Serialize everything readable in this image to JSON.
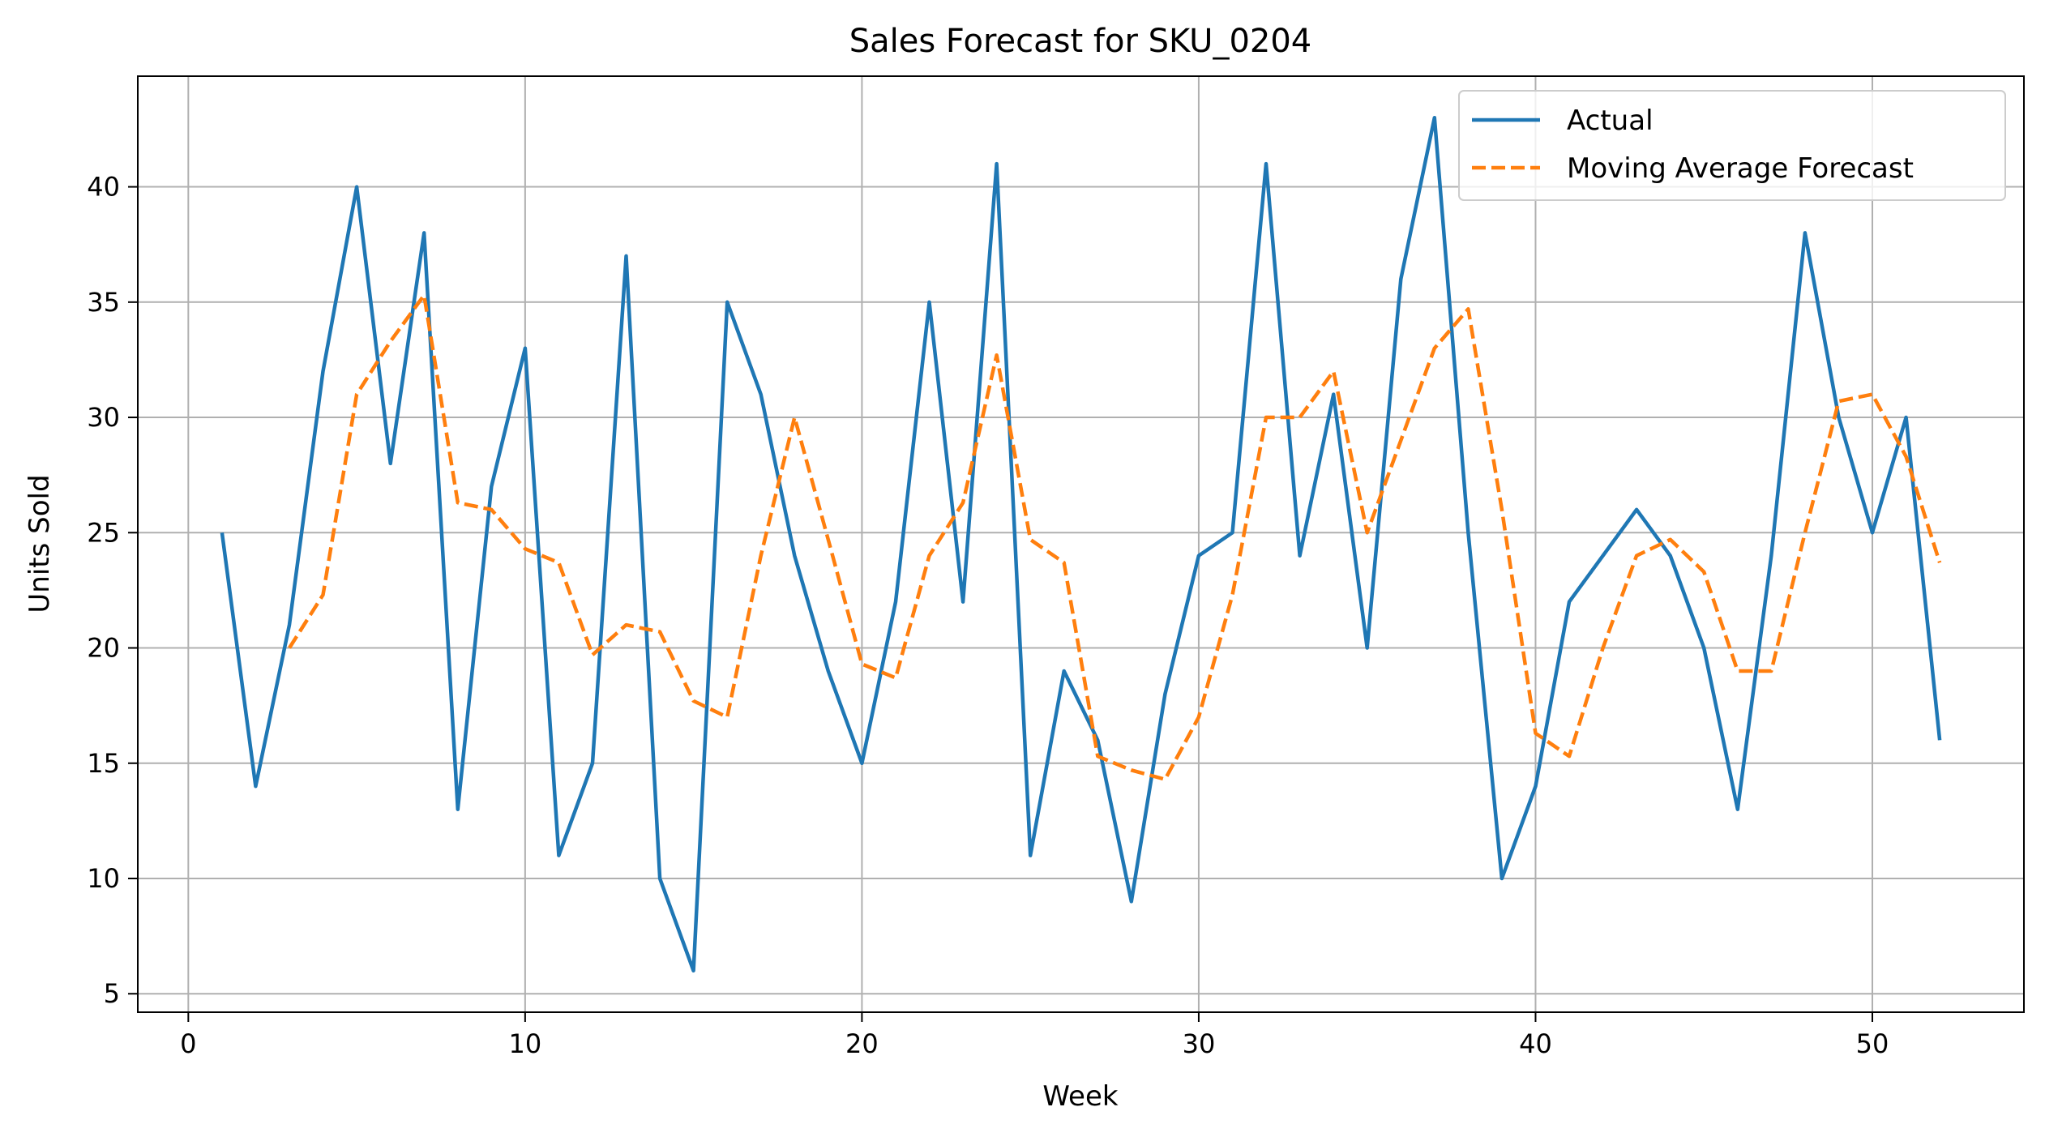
{
  "chart_data": {
    "type": "line",
    "title": "Sales Forecast for SKU_0204",
    "xlabel": "Week",
    "ylabel": "Units Sold",
    "xlim": [
      -1.5,
      54.5
    ],
    "ylim": [
      4.2,
      44.8
    ],
    "xticks": [
      0,
      10,
      20,
      30,
      40,
      50
    ],
    "yticks": [
      5,
      10,
      15,
      20,
      25,
      30,
      35,
      40
    ],
    "grid": true,
    "legend_position": "top-right",
    "series": [
      {
        "name": "Actual",
        "color": "#1f77b4",
        "style": "solid",
        "x": [
          1,
          2,
          3,
          4,
          5,
          6,
          7,
          8,
          9,
          10,
          11,
          12,
          13,
          14,
          15,
          16,
          17,
          18,
          19,
          20,
          21,
          22,
          23,
          24,
          25,
          26,
          27,
          28,
          29,
          30,
          31,
          32,
          33,
          34,
          35,
          36,
          37,
          38,
          39,
          40,
          41,
          42,
          43,
          44,
          45,
          46,
          47,
          48,
          49,
          50,
          51,
          52
        ],
        "values": [
          25,
          14,
          21,
          32,
          40,
          28,
          38,
          13,
          27,
          33,
          11,
          15,
          37,
          10,
          6,
          35,
          31,
          24,
          19,
          15,
          22,
          35,
          22,
          41,
          11,
          19,
          16,
          9,
          18,
          24,
          25,
          41,
          24,
          31,
          20,
          36,
          43,
          25,
          10,
          14,
          22,
          24,
          26,
          24,
          20,
          13,
          24,
          38,
          30,
          25,
          30,
          16
        ]
      },
      {
        "name": "Moving Average Forecast",
        "color": "#ff7f0e",
        "style": "dashed",
        "x": [
          3,
          4,
          5,
          6,
          7,
          8,
          9,
          10,
          11,
          12,
          13,
          14,
          15,
          16,
          17,
          18,
          19,
          20,
          21,
          22,
          23,
          24,
          25,
          26,
          27,
          28,
          29,
          30,
          31,
          32,
          33,
          34,
          35,
          36,
          37,
          38,
          39,
          40,
          41,
          42,
          43,
          44,
          45,
          46,
          47,
          48,
          49,
          50,
          51,
          52
        ],
        "values": [
          20.0,
          22.3,
          31.0,
          33.3,
          35.3,
          26.3,
          26.0,
          24.3,
          23.7,
          19.7,
          21.0,
          20.7,
          17.7,
          17.0,
          24.0,
          30.0,
          24.7,
          19.3,
          18.7,
          24.0,
          26.3,
          32.7,
          24.7,
          23.7,
          15.3,
          14.7,
          14.3,
          17.0,
          22.3,
          30.0,
          30.0,
          32.0,
          25.0,
          29.0,
          33.0,
          34.7,
          26.0,
          16.3,
          15.3,
          20.0,
          24.0,
          24.7,
          23.3,
          19.0,
          19.0,
          25.0,
          30.7,
          31.0,
          28.3,
          23.7
        ]
      }
    ]
  }
}
